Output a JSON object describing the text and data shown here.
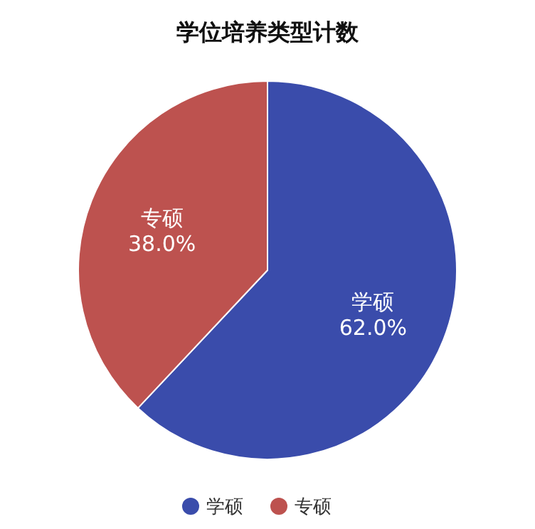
{
  "chart_data": {
    "type": "pie",
    "title": "学位培养类型计数",
    "categories": [
      "学硕",
      "专硕"
    ],
    "values": [
      62.0,
      38.0
    ],
    "colors": [
      "#3a4cab",
      "#bd524f"
    ],
    "value_labels": [
      "62.0%",
      "38.0%"
    ],
    "legend": "bottom"
  }
}
